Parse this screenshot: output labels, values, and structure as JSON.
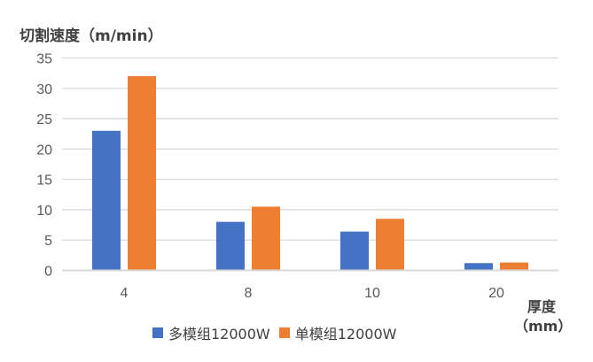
{
  "chart_data": {
    "type": "bar",
    "title": "切割速度（m/min）",
    "xlabel": "厚度（mm）",
    "xlabel_lines": [
      "厚度",
      "（mm）"
    ],
    "ylabel": "",
    "categories": [
      "4",
      "8",
      "10",
      "20"
    ],
    "series": [
      {
        "name": "多模组12000W",
        "color": "#4472C4",
        "values": [
          23,
          8,
          6.4,
          1.2
        ]
      },
      {
        "name": "单模组12000W",
        "color": "#ED7D31",
        "values": [
          32,
          10.5,
          8.5,
          1.3
        ]
      }
    ],
    "ylim": [
      0,
      35
    ],
    "yticks": [
      0,
      5,
      10,
      15,
      20,
      25,
      30,
      35
    ],
    "grid": true,
    "legend": "bottom"
  }
}
